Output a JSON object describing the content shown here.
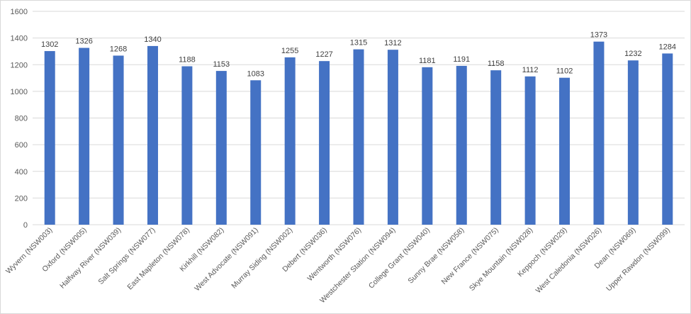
{
  "chart_data": {
    "type": "bar",
    "categories": [
      "Wyvern (NSW003)",
      "Oxford (NSW005)",
      "Halfway River (NSW039)",
      "Salt Springs (NSW077)",
      "East Mapleton (NSW078)",
      "Kirkhill (NSW082)",
      "West Advocate (NSW091)",
      "Murray Siding (NSW002)",
      "Debert (NSW036)",
      "Wentworth (NSW076)",
      "Westchester Station (NSW094)",
      "College Grant (NSW040)",
      "Sunny Brae (NSW058)",
      "New France (NSW075)",
      "Skye Mountain (NSW028)",
      "Keppoch (NSW029)",
      "West Caledonia (NSW026)",
      "Dean (NSW069)",
      "Upper Rawdon (NSW099)"
    ],
    "values": [
      1302,
      1326,
      1268,
      1340,
      1188,
      1153,
      1083,
      1255,
      1227,
      1315,
      1312,
      1181,
      1191,
      1158,
      1112,
      1102,
      1373,
      1232,
      1284
    ],
    "y_ticks": [
      0,
      200,
      400,
      600,
      800,
      1000,
      1200,
      1400,
      1600
    ],
    "ylim": [
      0,
      1600
    ],
    "title": "",
    "xlabel": "",
    "ylabel": "",
    "grid": true,
    "legend": "none",
    "bar_color": "#4472C4",
    "grid_color": "#d9d9d9"
  }
}
